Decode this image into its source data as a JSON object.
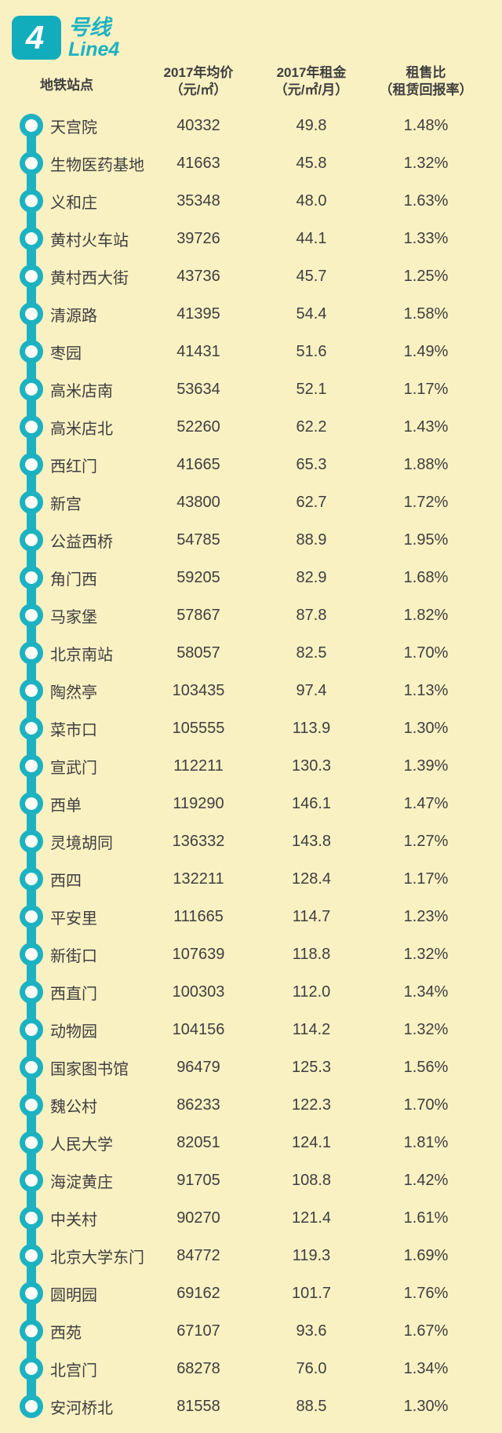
{
  "theme": {
    "background": "#FAF1C3",
    "teal": "#1CB2C1",
    "badge_teal": "#12ADBD",
    "text": "#3E3E3E",
    "ring_fill": "#FEFEF6"
  },
  "brand": {
    "line_number": "4",
    "line_suffix": "号线",
    "line_latin": "Line4"
  },
  "table_headers": {
    "station": "地铁站点",
    "price_line1": "2017年均价",
    "price_line2": "（元/㎡）",
    "rent_line1": "2017年租金",
    "rent_line2": "（元/㎡/月）",
    "ratio_line1": "租售比",
    "ratio_line2": "（租赁回报率）"
  },
  "chart_data": {
    "type": "table",
    "title": "4号线 Line4",
    "columns": [
      "地铁站点",
      "2017年均价（元/㎡）",
      "2017年租金（元/㎡/月）",
      "租售比（租赁回报率）"
    ],
    "rows": [
      {
        "name": "天宫院",
        "price": "40332",
        "rent": "49.8",
        "ratio": "1.48%"
      },
      {
        "name": "生物医药基地",
        "price": "41663",
        "rent": "45.8",
        "ratio": "1.32%"
      },
      {
        "name": "义和庄",
        "price": "35348",
        "rent": "48.0",
        "ratio": "1.63%"
      },
      {
        "name": "黄村火车站",
        "price": "39726",
        "rent": "44.1",
        "ratio": "1.33%"
      },
      {
        "name": "黄村西大街",
        "price": "43736",
        "rent": "45.7",
        "ratio": "1.25%"
      },
      {
        "name": "清源路",
        "price": "41395",
        "rent": "54.4",
        "ratio": "1.58%"
      },
      {
        "name": "枣园",
        "price": "41431",
        "rent": "51.6",
        "ratio": "1.49%"
      },
      {
        "name": "高米店南",
        "price": "53634",
        "rent": "52.1",
        "ratio": "1.17%"
      },
      {
        "name": "高米店北",
        "price": "52260",
        "rent": "62.2",
        "ratio": "1.43%"
      },
      {
        "name": "西红门",
        "price": "41665",
        "rent": "65.3",
        "ratio": "1.88%"
      },
      {
        "name": "新宫",
        "price": "43800",
        "rent": "62.7",
        "ratio": "1.72%"
      },
      {
        "name": "公益西桥",
        "price": "54785",
        "rent": "88.9",
        "ratio": "1.95%"
      },
      {
        "name": "角门西",
        "price": "59205",
        "rent": "82.9",
        "ratio": "1.68%"
      },
      {
        "name": "马家堡",
        "price": "57867",
        "rent": "87.8",
        "ratio": "1.82%"
      },
      {
        "name": "北京南站",
        "price": "58057",
        "rent": "82.5",
        "ratio": "1.70%"
      },
      {
        "name": "陶然亭",
        "price": "103435",
        "rent": "97.4",
        "ratio": "1.13%"
      },
      {
        "name": "菜市口",
        "price": "105555",
        "rent": "113.9",
        "ratio": "1.30%"
      },
      {
        "name": "宣武门",
        "price": "112211",
        "rent": "130.3",
        "ratio": "1.39%"
      },
      {
        "name": "西单",
        "price": "119290",
        "rent": "146.1",
        "ratio": "1.47%"
      },
      {
        "name": "灵境胡同",
        "price": "136332",
        "rent": "143.8",
        "ratio": "1.27%"
      },
      {
        "name": "西四",
        "price": "132211",
        "rent": "128.4",
        "ratio": "1.17%"
      },
      {
        "name": "平安里",
        "price": "111665",
        "rent": "114.7",
        "ratio": "1.23%"
      },
      {
        "name": "新街口",
        "price": "107639",
        "rent": "118.8",
        "ratio": "1.32%"
      },
      {
        "name": "西直门",
        "price": "100303",
        "rent": "112.0",
        "ratio": "1.34%"
      },
      {
        "name": "动物园",
        "price": "104156",
        "rent": "114.2",
        "ratio": "1.32%"
      },
      {
        "name": "国家图书馆",
        "price": "96479",
        "rent": "125.3",
        "ratio": "1.56%"
      },
      {
        "name": "魏公村",
        "price": "86233",
        "rent": "122.3",
        "ratio": "1.70%"
      },
      {
        "name": "人民大学",
        "price": "82051",
        "rent": "124.1",
        "ratio": "1.81%"
      },
      {
        "name": "海淀黄庄",
        "price": "91705",
        "rent": "108.8",
        "ratio": "1.42%"
      },
      {
        "name": "中关村",
        "price": "90270",
        "rent": "121.4",
        "ratio": "1.61%"
      },
      {
        "name": "北京大学东门",
        "price": "84772",
        "rent": "119.3",
        "ratio": "1.69%"
      },
      {
        "name": "圆明园",
        "price": "69162",
        "rent": "101.7",
        "ratio": "1.76%"
      },
      {
        "name": "西苑",
        "price": "67107",
        "rent": "93.6",
        "ratio": "1.67%"
      },
      {
        "name": "北宫门",
        "price": "68278",
        "rent": "76.0",
        "ratio": "1.34%"
      },
      {
        "name": "安河桥北",
        "price": "81558",
        "rent": "88.5",
        "ratio": "1.30%"
      }
    ]
  }
}
